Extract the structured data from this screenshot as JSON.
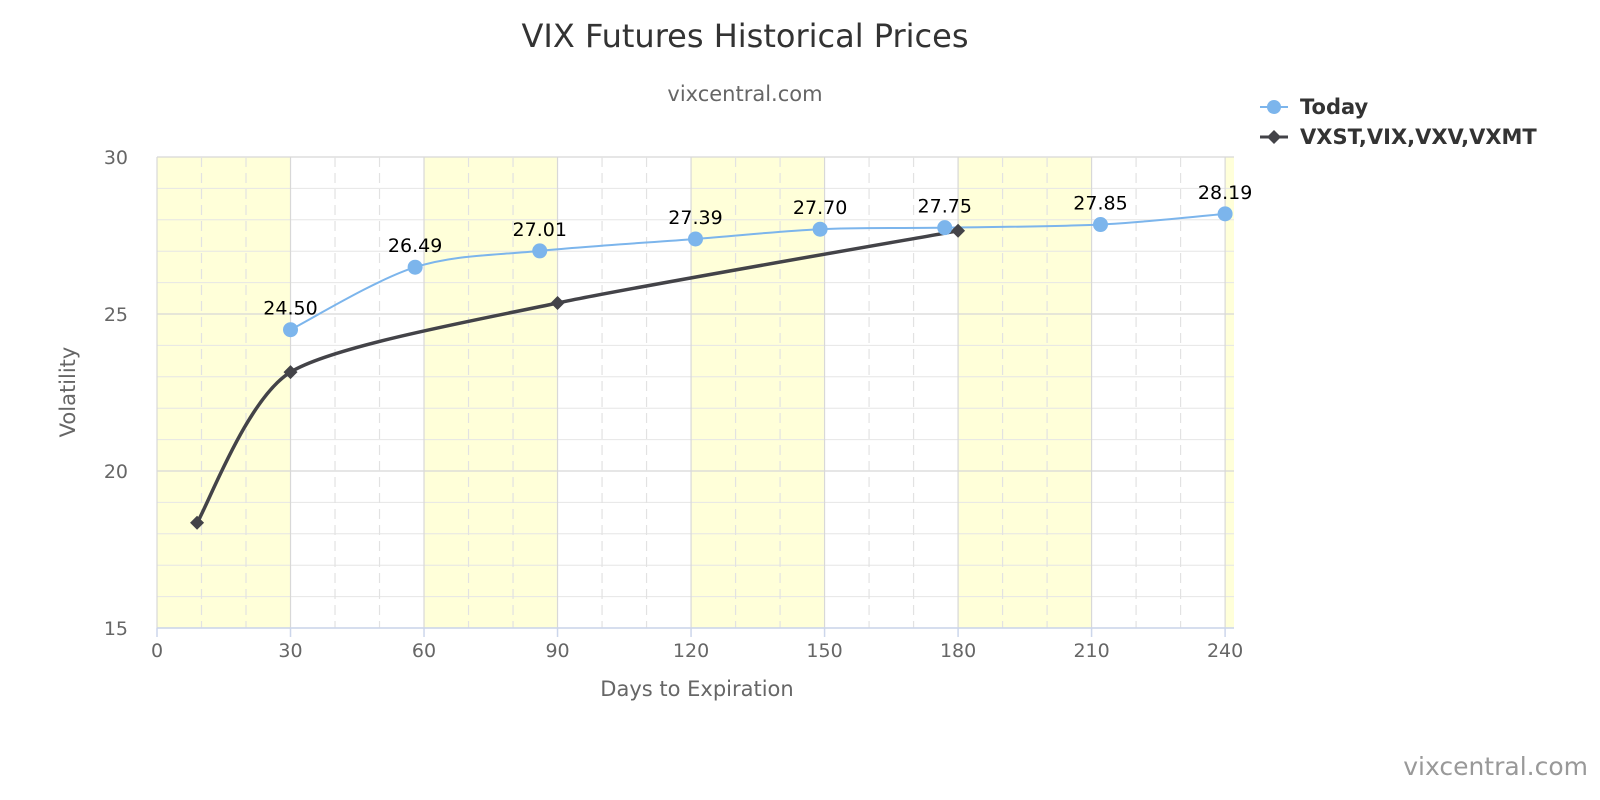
{
  "chart_data": {
    "type": "line",
    "title": "VIX Futures Historical Prices",
    "subtitle": "vixcentral.com",
    "xlabel": "Days to Expiration",
    "ylabel": "Volatility",
    "xlim": [
      0,
      242
    ],
    "ylim": [
      15,
      30
    ],
    "x_ticks": [
      "0",
      "30",
      "60",
      "90",
      "120",
      "150",
      "180",
      "210",
      "240"
    ],
    "y_ticks": [
      "15",
      "20",
      "25",
      "30"
    ],
    "grid": true,
    "band_color": "#ffffd9",
    "bands": [
      [
        0,
        30
      ],
      [
        60,
        90
      ],
      [
        120,
        150
      ],
      [
        180,
        210
      ],
      [
        240,
        242
      ]
    ],
    "legend_position": "top-right",
    "series": [
      {
        "name": "Today",
        "color": "#7cb5ec",
        "marker": "circle",
        "x": [
          30,
          58,
          86,
          121,
          149,
          177,
          212,
          240
        ],
        "y": [
          24.5,
          26.49,
          27.01,
          27.39,
          27.7,
          27.75,
          27.85,
          28.19
        ],
        "labels": [
          "24.50",
          "26.49",
          "27.01",
          "27.39",
          "27.70",
          "27.75",
          "27.85",
          "28.19"
        ]
      },
      {
        "name": "VXST,VIX,VXV,VXMT",
        "color": "#434348",
        "marker": "diamond",
        "x": [
          9,
          30,
          90,
          180
        ],
        "y": [
          18.35,
          23.15,
          25.35,
          27.65
        ]
      }
    ],
    "credit": "vixcentral.com"
  }
}
